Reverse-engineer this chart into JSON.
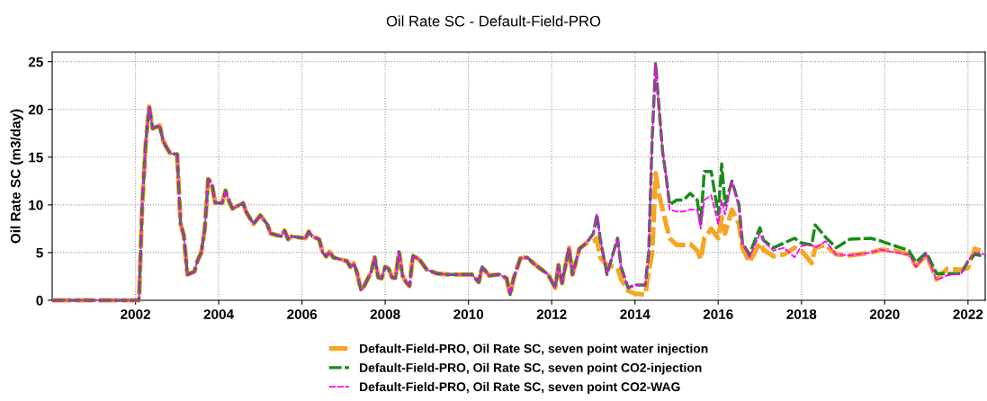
{
  "chart_data": {
    "type": "line",
    "title": "Oil Rate SC - Default-Field-PRO",
    "ylabel": "Oil Rate SC (m3/day)",
    "x": [
      "2000-01",
      "2002-02",
      "2002-03",
      "2002-04",
      "2002-05",
      "2002-06",
      "2002-08",
      "2002-09",
      "2002-10",
      "2002-11",
      "2003-01",
      "2003-02",
      "2003-03",
      "2003-04",
      "2003-06",
      "2003-07",
      "2003-08",
      "2003-09",
      "2003-10",
      "2003-11",
      "2003-12",
      "2004-02",
      "2004-03",
      "2004-04",
      "2004-05",
      "2004-08",
      "2004-09",
      "2004-11",
      "2005-01",
      "2005-03",
      "2005-04",
      "2005-07",
      "2005-08",
      "2005-09",
      "2005-10",
      "2006-02",
      "2006-03",
      "2006-04",
      "2006-06",
      "2006-07",
      "2006-08",
      "2006-09",
      "2006-10",
      "2007-02",
      "2007-03",
      "2007-04",
      "2007-05",
      "2007-06",
      "2007-07",
      "2007-09",
      "2007-10",
      "2007-11",
      "2007-12",
      "2008-01",
      "2008-02",
      "2008-03",
      "2008-04",
      "2008-05",
      "2008-06",
      "2008-07",
      "2008-08",
      "2008-09",
      "2008-11",
      "2009-01",
      "2009-04",
      "2009-07",
      "2010-02",
      "2010-04",
      "2010-05",
      "2010-07",
      "2010-10",
      "2010-12",
      "2011-01",
      "2011-02",
      "2011-04",
      "2011-06",
      "2011-08",
      "2011-12",
      "2012-02",
      "2012-03",
      "2012-04",
      "2012-06",
      "2012-07",
      "2012-09",
      "2012-11",
      "2013-01",
      "2013-02",
      "2013-03",
      "2013-05",
      "2013-06",
      "2013-08",
      "2013-09",
      "2013-11",
      "2014-01",
      "2014-04",
      "2014-05",
      "2014-06",
      "2014-07",
      "2014-08",
      "2014-09",
      "2014-10",
      "2014-11",
      "2015-01",
      "2015-03",
      "2015-05",
      "2015-07",
      "2015-08",
      "2015-09",
      "2015-11",
      "2016-01",
      "2016-02",
      "2016-03",
      "2016-05",
      "2016-07",
      "2016-08",
      "2016-10",
      "2017-01",
      "2017-02",
      "2017-05",
      "2017-08",
      "2017-11",
      "2018-01",
      "2018-04",
      "2018-05",
      "2018-08",
      "2018-11",
      "2019-03",
      "2019-09",
      "2019-12",
      "2020-04",
      "2020-08",
      "2020-10",
      "2021-01",
      "2021-04",
      "2021-07",
      "2021-11",
      "2022-01",
      "2022-03",
      "2022-06"
    ],
    "series": [
      {
        "name": "Default-Field-PRO, Oil Rate SC, seven point water injection",
        "color": "#f5a623",
        "values": [
          0,
          0,
          10,
          16.5,
          20.3,
          18,
          18.3,
          16.7,
          16,
          15.4,
          15.3,
          8,
          6.8,
          2.7,
          3.0,
          4.2,
          5,
          7.5,
          12.7,
          12.3,
          10.2,
          10.2,
          11.5,
          10.4,
          9.6,
          10.2,
          9.2,
          8.0,
          8.9,
          8.0,
          7.0,
          6.7,
          7.3,
          6.4,
          6.7,
          6.5,
          7.2,
          6.7,
          6.4,
          5.0,
          4.6,
          5.1,
          4.5,
          4.1,
          3.5,
          3.9,
          2.8,
          1.1,
          1.5,
          3.0,
          4.5,
          2.4,
          2.3,
          3.5,
          3.3,
          2.4,
          2.3,
          5.1,
          2.6,
          1.9,
          1.5,
          4.7,
          4.2,
          3.2,
          2.8,
          2.7,
          2.7,
          1.9,
          3.5,
          2.6,
          2.7,
          2.3,
          0.6,
          2.3,
          4.4,
          4.5,
          3.8,
          2.7,
          1.3,
          3.7,
          1.8,
          5.5,
          2.7,
          5.4,
          6.0,
          6.2,
          6.5,
          4.5,
          3.7,
          3.6,
          3.4,
          2.2,
          1,
          0.7,
          0.6,
          3,
          5,
          13.3,
          11,
          9.5,
          8,
          6.5,
          5.8,
          5.8,
          5.9,
          5.2,
          4.3,
          6.5,
          7.5,
          6.5,
          8.7,
          7,
          9.5,
          8,
          5.5,
          4,
          6,
          5.3,
          4.6,
          4.8,
          5.5,
          5.2,
          3.9,
          5.5,
          5.8,
          4.8,
          4.7,
          5.0,
          5.3,
          5.2,
          4.8,
          3.6,
          4.8,
          2.2,
          3.3,
          3.2,
          3.4,
          5.4,
          5.0
        ]
      },
      {
        "name": "Default-Field-PRO, Oil Rate SC, seven point CO2-injection",
        "color": "#1a8a1a",
        "values": [
          0,
          0,
          10,
          16.5,
          20.3,
          18,
          18.3,
          16.7,
          16,
          15.4,
          15.3,
          8,
          6.8,
          2.7,
          3.0,
          4.2,
          5,
          7.5,
          12.7,
          12.3,
          10.2,
          10.2,
          11.5,
          10.4,
          9.6,
          10.2,
          9.2,
          8.0,
          8.9,
          8.0,
          7.0,
          6.7,
          7.3,
          6.4,
          6.7,
          6.5,
          7.2,
          6.7,
          6.4,
          5.0,
          4.6,
          5.1,
          4.5,
          4.1,
          3.5,
          3.9,
          2.8,
          1.1,
          1.5,
          3.0,
          4.5,
          2.4,
          2.3,
          3.5,
          3.3,
          2.4,
          2.3,
          5.1,
          2.6,
          1.9,
          1.5,
          4.7,
          4.2,
          3.2,
          2.8,
          2.7,
          2.7,
          1.9,
          3.5,
          2.6,
          2.7,
          2.3,
          0.6,
          2.3,
          4.4,
          4.5,
          3.8,
          2.7,
          1.3,
          3.7,
          1.8,
          5.5,
          2.7,
          5.4,
          6.0,
          7,
          9,
          6.5,
          2.7,
          4,
          6.5,
          3.5,
          1.3,
          1.6,
          1.6,
          5,
          17,
          24.8,
          20,
          15.5,
          13,
          10,
          10.5,
          10.5,
          11.2,
          10.5,
          8,
          13.5,
          13.5,
          9,
          14.3,
          10,
          12.5,
          10,
          6,
          4.8,
          7.6,
          6.3,
          5.5,
          6.0,
          6.5,
          6.0,
          5.8,
          7.9,
          6.6,
          5.5,
          6.4,
          6.5,
          6.2,
          5.7,
          5.2,
          4.0,
          5.0,
          2.8,
          2.8,
          2.8,
          4.1,
          4.8,
          4.6
        ]
      },
      {
        "name": "Default-Field-PRO, Oil Rate SC, seven point CO2-WAG",
        "color": "#ff00ff",
        "values": [
          0,
          0,
          10,
          16.5,
          20.3,
          18,
          18.3,
          16.7,
          16,
          15.4,
          15.3,
          8,
          6.8,
          2.7,
          3.0,
          4.2,
          5,
          7.5,
          12.7,
          12.3,
          10.2,
          10.2,
          11.5,
          10.4,
          9.6,
          10.2,
          9.2,
          8.0,
          8.9,
          8.0,
          7.0,
          6.7,
          7.3,
          6.4,
          6.7,
          6.5,
          7.2,
          6.7,
          6.4,
          5.0,
          4.6,
          5.1,
          4.5,
          4.1,
          3.5,
          3.9,
          2.8,
          1.1,
          1.5,
          3.0,
          4.5,
          2.4,
          2.3,
          3.5,
          3.3,
          2.4,
          2.3,
          5.1,
          2.6,
          1.9,
          1.5,
          4.7,
          4.2,
          3.2,
          2.8,
          2.7,
          2.7,
          1.9,
          3.5,
          2.6,
          2.7,
          2.3,
          0.6,
          2.3,
          4.4,
          4.5,
          3.8,
          2.7,
          1.3,
          3.7,
          1.8,
          5.5,
          2.7,
          5.4,
          6.0,
          7,
          9,
          6.5,
          2.7,
          4,
          6.5,
          3.5,
          1.3,
          1.6,
          1.6,
          5,
          17,
          24.8,
          20,
          15.5,
          13,
          9.5,
          9.3,
          9.3,
          9.5,
          9.5,
          7.5,
          10.5,
          11,
          8,
          10.5,
          9,
          12.5,
          9.8,
          6,
          4.5,
          7,
          6.2,
          5.2,
          5.5,
          4.5,
          5.7,
          5.8,
          5.5,
          6.2,
          4.8,
          4.7,
          5.0,
          5.3,
          5.0,
          4.8,
          3.5,
          4.8,
          2.1,
          2.6,
          2.8,
          4.1,
          5.0,
          4.8
        ]
      }
    ],
    "xlim": [
      "2000-01",
      "2022-06"
    ],
    "xticks": [
      "2002",
      "2004",
      "2006",
      "2008",
      "2010",
      "2012",
      "2014",
      "2016",
      "2018",
      "2020",
      "2022"
    ],
    "ylim": [
      0,
      26
    ],
    "yticks": [
      0,
      5,
      10,
      15,
      20,
      25
    ],
    "grid": true,
    "legend": "bottom",
    "line_style": "dashed",
    "marker": "none"
  }
}
